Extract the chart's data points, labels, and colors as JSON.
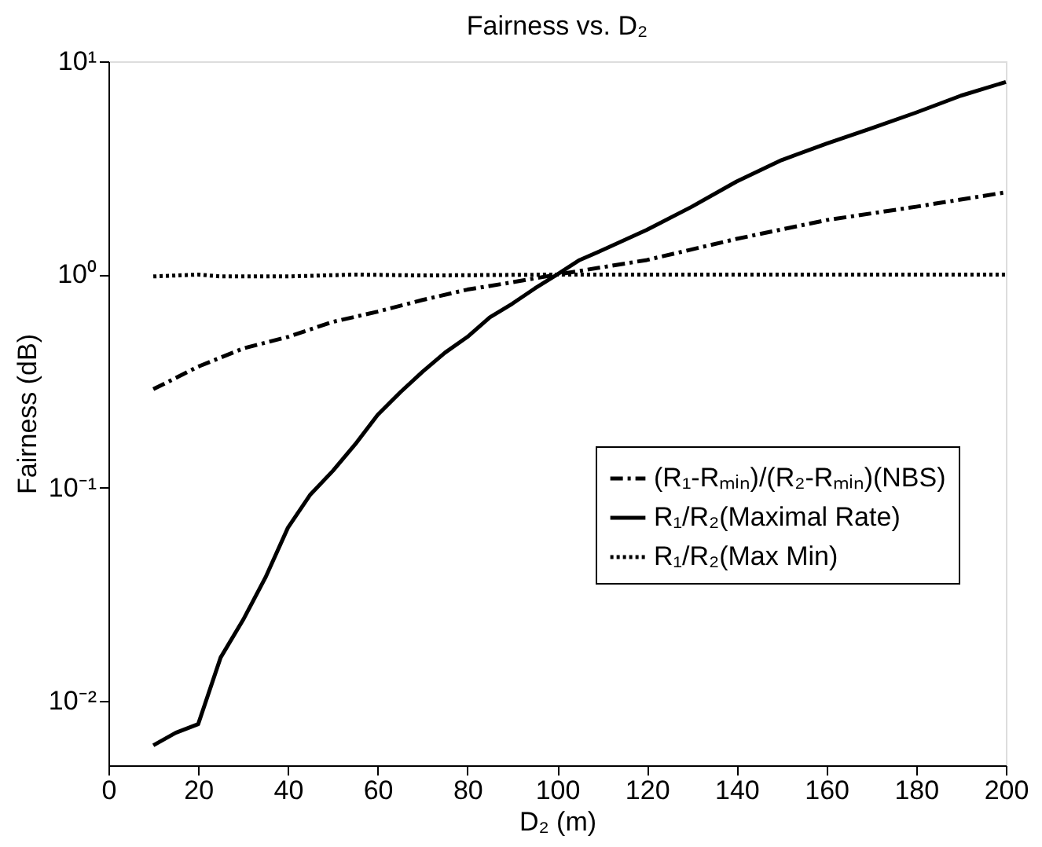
{
  "chart_data": {
    "type": "line",
    "title": "Fairness vs. D₂",
    "xlabel": "D₂ (m)",
    "ylabel": "Fairness (dB)",
    "log": "y",
    "grid": false,
    "legend": "right",
    "marker": "none",
    "xlim": [
      0,
      200
    ],
    "xticks": [
      0,
      20,
      40,
      60,
      80,
      100,
      120,
      140,
      160,
      180,
      200
    ],
    "ylim": [
      0.005,
      10
    ],
    "yticks": [
      {
        "value": 0.01,
        "label": "10⁻²"
      },
      {
        "value": 0.1,
        "label": "10⁻¹"
      },
      {
        "value": 1,
        "label": "10⁰"
      },
      {
        "value": 10,
        "label": "10¹"
      }
    ],
    "series": [
      {
        "name": "(R₁-Rₘᵢₙ)/(R₂-Rₘᵢₙ)(NBS)",
        "color": "#000000",
        "line_style": "dashdot",
        "x": [
          10,
          20,
          30,
          40,
          50,
          60,
          70,
          80,
          90,
          100,
          120,
          140,
          160,
          180,
          200
        ],
        "values": [
          0.29,
          0.37,
          0.45,
          0.51,
          0.6,
          0.67,
          0.76,
          0.85,
          0.92,
          1.0,
          1.17,
          1.47,
          1.8,
          2.08,
          2.43
        ]
      },
      {
        "name": "R₁/R₂(Maximal Rate)",
        "color": "#000000",
        "line_style": "solid",
        "x": [
          10,
          15,
          20,
          25,
          30,
          35,
          40,
          45,
          50,
          55,
          60,
          65,
          70,
          75,
          80,
          85,
          90,
          95,
          100,
          105,
          110,
          120,
          130,
          140,
          150,
          160,
          170,
          180,
          190,
          200
        ],
        "values": [
          0.0062,
          0.0071,
          0.0078,
          0.016,
          0.024,
          0.038,
          0.065,
          0.093,
          0.12,
          0.16,
          0.22,
          0.28,
          0.35,
          0.43,
          0.51,
          0.63,
          0.73,
          0.86,
          1.0,
          1.17,
          1.3,
          1.62,
          2.08,
          2.73,
          3.44,
          4.11,
          4.85,
          5.75,
          6.9,
          8.0
        ]
      },
      {
        "name": "R₁/R₂(Max Min)",
        "color": "#000000",
        "line_style": "dotted",
        "x": [
          10,
          20,
          25,
          40,
          55,
          70,
          100,
          130,
          160,
          200
        ],
        "values": [
          0.98,
          1.0,
          0.98,
          0.98,
          1.0,
          0.99,
          1.0,
          1.0,
          1.0,
          1.0
        ]
      }
    ]
  }
}
